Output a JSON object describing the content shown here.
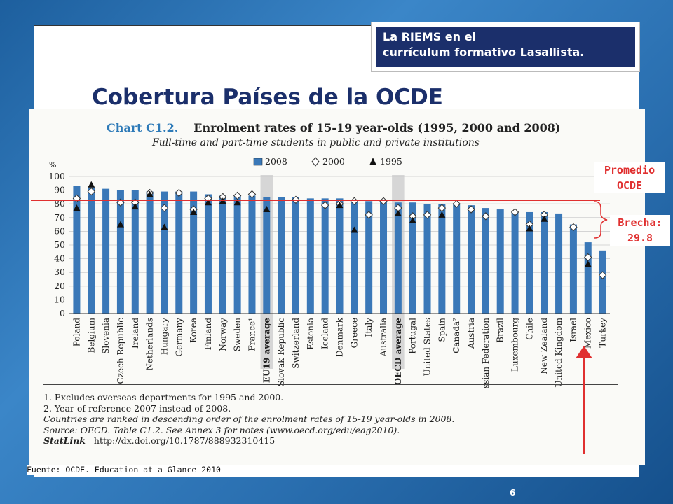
{
  "header_box": {
    "line1": "La RIEMS en el",
    "line2": "currículum formativo Lasallista."
  },
  "slide_title": "Cobertura Países de la OCDE",
  "chart_heading": {
    "number": "Chart C1.2.",
    "title": "Enrolment rates of 15-19 year-olds (1995, 2000 and 2008)",
    "subtitle": "Full-time and part-time students in public and private institutions"
  },
  "chart_data": {
    "type": "bar",
    "ylabel": "%",
    "ylim": [
      0,
      100
    ],
    "yticks": [
      0,
      10,
      20,
      30,
      40,
      50,
      60,
      70,
      80,
      90,
      100
    ],
    "legend": [
      {
        "name": "2008",
        "marker": "bar"
      },
      {
        "name": "2000",
        "marker": "diamond"
      },
      {
        "name": "1995",
        "marker": "triangle"
      }
    ],
    "categories": [
      "Poland",
      "Belgium",
      "Slovenia",
      "Czech Republic",
      "Ireland",
      "Netherlands",
      "Hungary",
      "Germany",
      "Korea",
      "Finland",
      "Norway",
      "Sweden",
      "France¹",
      "EU19 average",
      "Slovak Republic",
      "Switzerland",
      "Estonia",
      "Iceland",
      "Denmark",
      "Greece",
      "Italy",
      "Australia",
      "OECD average",
      "Portugal",
      "United States",
      "Spain",
      "Canada²",
      "Austria",
      "Russian Federation",
      "Brazil",
      "Luxembourg",
      "Chile",
      "New Zealand",
      "United Kingdom",
      "Israel",
      "Mexico",
      "Turkey"
    ],
    "highlighted": [
      "EU19 average",
      "OECD average"
    ],
    "series": [
      {
        "name": "2008",
        "values": [
          93,
          92,
          91,
          90,
          90,
          89,
          89,
          89,
          89,
          87,
          86,
          86,
          86,
          85,
          85,
          85,
          84,
          84,
          84,
          83,
          82,
          82,
          81,
          81,
          80,
          80,
          80,
          79,
          77,
          76,
          75,
          74,
          74,
          73,
          65,
          52,
          46
        ]
      },
      {
        "name": "2000",
        "values": [
          84,
          89,
          null,
          81,
          81,
          88,
          77,
          88,
          76,
          84,
          85,
          86,
          87,
          null,
          null,
          83,
          null,
          79,
          80,
          82,
          72,
          82,
          77,
          71,
          72,
          77,
          80,
          76,
          71,
          null,
          74,
          65,
          72,
          null,
          63,
          41,
          28
        ]
      },
      {
        "name": "1995",
        "values": [
          77,
          94,
          null,
          65,
          78,
          87,
          63,
          null,
          74,
          81,
          82,
          81,
          null,
          76,
          null,
          null,
          null,
          null,
          79,
          61,
          null,
          null,
          73,
          68,
          null,
          72,
          null,
          null,
          null,
          null,
          null,
          62,
          69,
          null,
          null,
          36,
          null
        ]
      }
    ]
  },
  "notes": {
    "n1": "1. Excludes overseas departments for 1995 and 2000.",
    "n2": "2. Year of reference 2007 instead of 2008.",
    "n3": "Countries are ranked in descending order of the enrolment rates of 15-19 year-olds in 2008.",
    "n4": "Source: OECD. Table C1.2. See Annex 3 for notes (www.oecd.org/edu/eag2010).",
    "statlink": "StatLink",
    "statlink_url": "http://dx.doi.org/10.1787/888932310415"
  },
  "annotations": {
    "promedio_line1": "Promedio",
    "promedio_line2": "OCDE",
    "brecha_line1": "Brecha:",
    "brecha_line2": "29.8"
  },
  "source_footer": "Fuente: OCDE. Education at a Glance 2010",
  "page_number": "6",
  "colors": {
    "bar": "#3a78b8",
    "highlight": "#d6d6d6",
    "annotation": "#e03030",
    "header_bg": "#1b2f6b",
    "title": "#1b2f6b"
  }
}
